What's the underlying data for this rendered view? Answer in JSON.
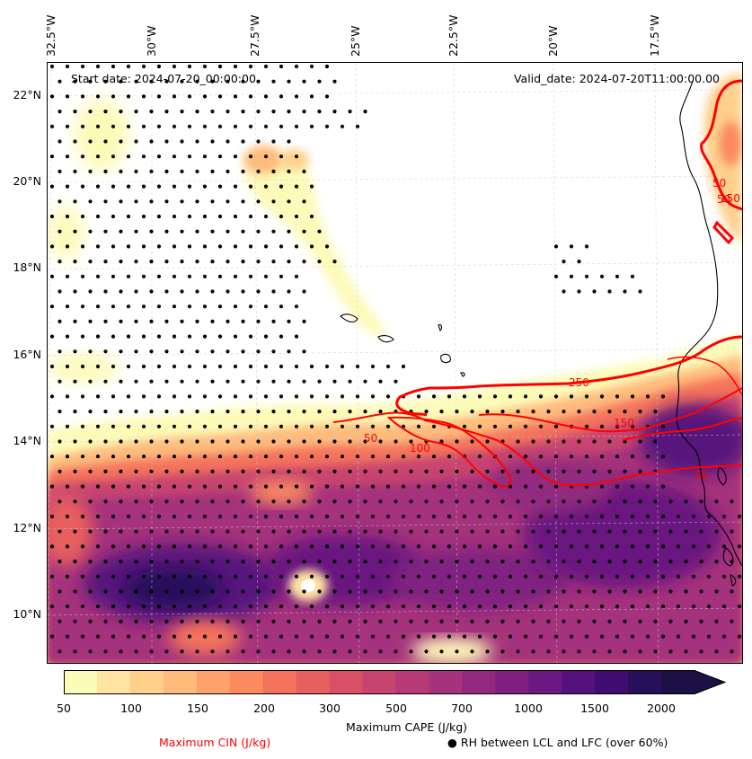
{
  "map": {
    "start_date": "Start date: 2024-07-20_00:00:00",
    "valid_date": "Valid_date: 2024-07-20T11:00:00.00",
    "lon_ticks": [
      "32.5°W",
      "30°W",
      "27.5°W",
      "25°W",
      "22.5°W",
      "20°W",
      "17.5°W"
    ],
    "lat_ticks": [
      "22°N",
      "20°N",
      "18°N",
      "16°N",
      "14°N",
      "12°N",
      "10°N"
    ],
    "lon_range": [
      -32.5,
      -16.0
    ],
    "lat_range": [
      8.9,
      22.7
    ],
    "cin_contour_labels": [
      "250",
      "150",
      "50",
      "100",
      "50",
      "50",
      "150",
      "50"
    ],
    "coastline_color": "#000000",
    "cin_color": "#ff0000"
  },
  "colorbar": {
    "label": "Maximum CAPE (J/kg)",
    "tick_labels": [
      "50",
      "100",
      "150",
      "200",
      "300",
      "500",
      "700",
      "1000",
      "1500",
      "2000"
    ],
    "levels": [
      50,
      75,
      100,
      125,
      150,
      175,
      200,
      250,
      300,
      400,
      500,
      600,
      700,
      850,
      1000,
      1250,
      1500,
      1750,
      2000
    ],
    "colors": [
      "#fdfbb8",
      "#fee3a2",
      "#fed08c",
      "#febb7b",
      "#fda26c",
      "#fb8a5f",
      "#f4735c",
      "#e85f5f",
      "#d84f66",
      "#c74470",
      "#b73a77",
      "#a5327c",
      "#92297f",
      "#7f2080",
      "#6b1880",
      "#56127c",
      "#3e0d6f",
      "#26105a",
      "#14103c"
    ],
    "extend_color": "#1c1045"
  },
  "legend": {
    "cin_label": "Maximum CIN (J/kg)",
    "rh_label": "● RH between LCL and LFC (over 60%)",
    "cin_label_color": "#ff0000"
  }
}
